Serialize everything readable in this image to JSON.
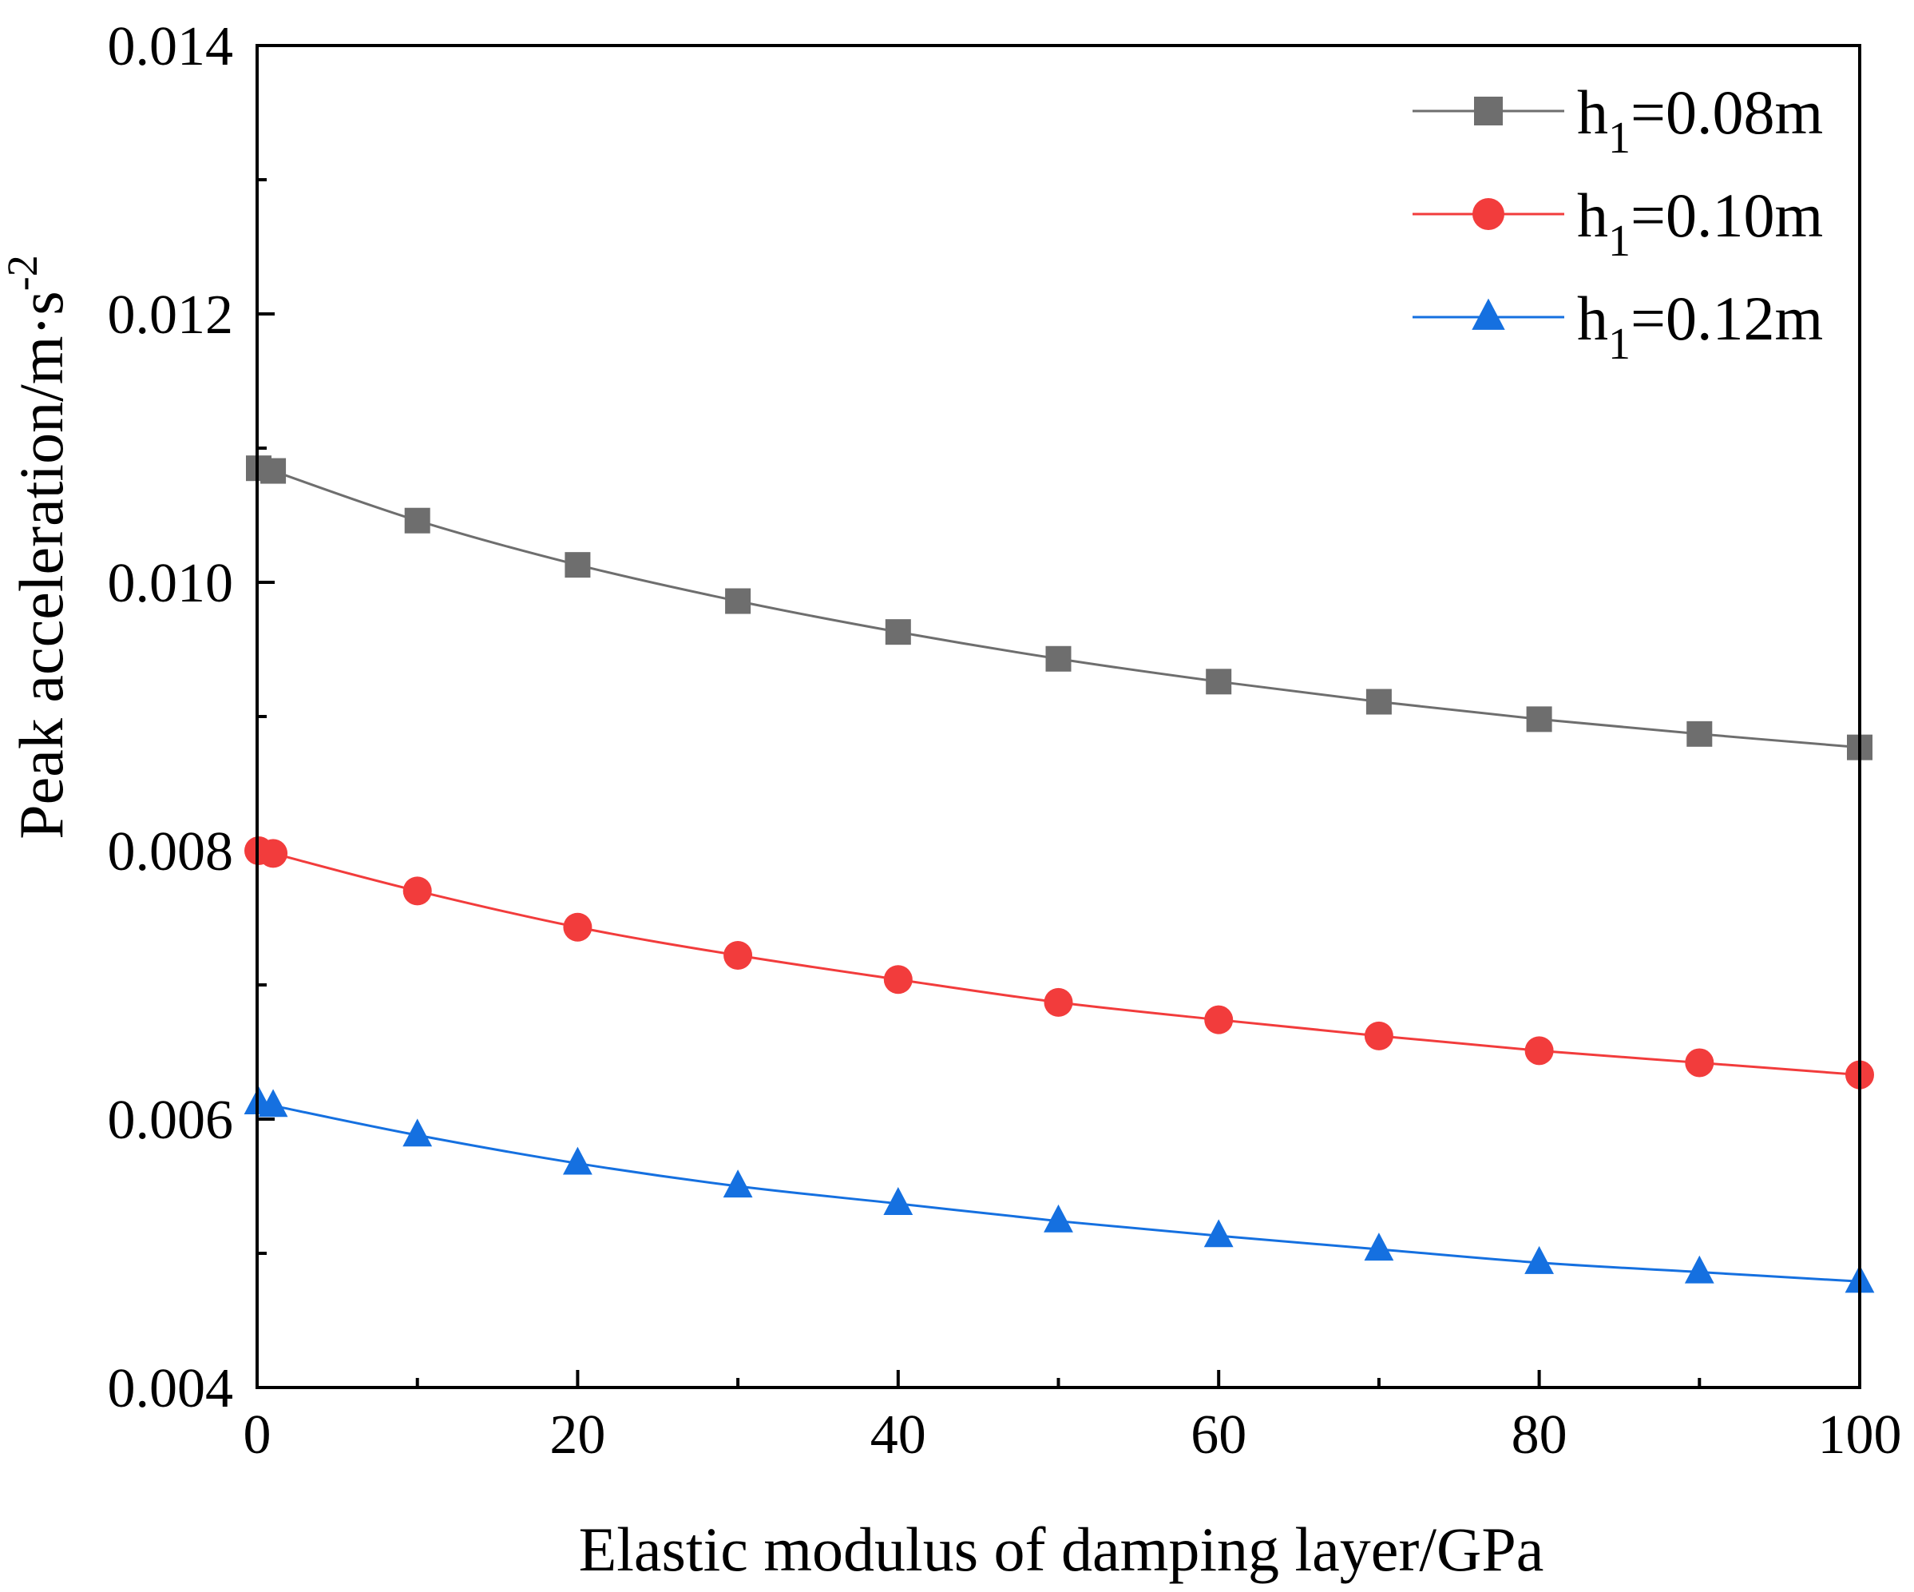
{
  "chart_data": {
    "type": "line",
    "title": "",
    "xlabel": "Elastic modulus of damping layer/GPa",
    "ylabel": {
      "main": "Peak acceleration/m·s",
      "sup": "-2"
    },
    "xlim": [
      0,
      100
    ],
    "ylim": [
      0.004,
      0.014
    ],
    "xticks": [
      0,
      20,
      40,
      60,
      80,
      100
    ],
    "xtick_labels": [
      "0",
      "20",
      "40",
      "60",
      "80",
      "100"
    ],
    "yticks": [
      0.004,
      0.006,
      0.008,
      0.01,
      0.012,
      0.014
    ],
    "ytick_labels": [
      "0.004",
      "0.006",
      "0.008",
      "0.010",
      "0.012",
      "0.014"
    ],
    "legend_position": "top-right",
    "x": [
      1,
      10,
      20,
      30,
      40,
      50,
      60,
      70,
      80,
      90,
      100
    ],
    "series": [
      {
        "name": "h1=0.08m",
        "label": {
          "base": "h",
          "sub": "1",
          "rest": "=0.08m"
        },
        "marker": "square",
        "color": "#6e6e6e",
        "values": [
          0.01083,
          0.01046,
          0.01013,
          0.00986,
          0.00963,
          0.00943,
          0.00926,
          0.00911,
          0.00898,
          0.00887,
          0.00877
        ]
      },
      {
        "name": "h1=0.10m",
        "label": {
          "base": "h",
          "sub": "1",
          "rest": "=0.10m"
        },
        "marker": "circle",
        "color": "#f23c3c",
        "values": [
          0.00798,
          0.0077,
          0.00743,
          0.00722,
          0.00704,
          0.00687,
          0.00674,
          0.00662,
          0.00651,
          0.00642,
          0.00633
        ]
      },
      {
        "name": "h1=0.12m",
        "label": {
          "base": "h",
          "sub": "1",
          "rest": "=0.12m"
        },
        "marker": "triangle",
        "color": "#1570e0",
        "values": [
          0.0061,
          0.00588,
          0.00567,
          0.0055,
          0.00537,
          0.00524,
          0.00513,
          0.00503,
          0.00493,
          0.00486,
          0.00479
        ]
      }
    ]
  }
}
